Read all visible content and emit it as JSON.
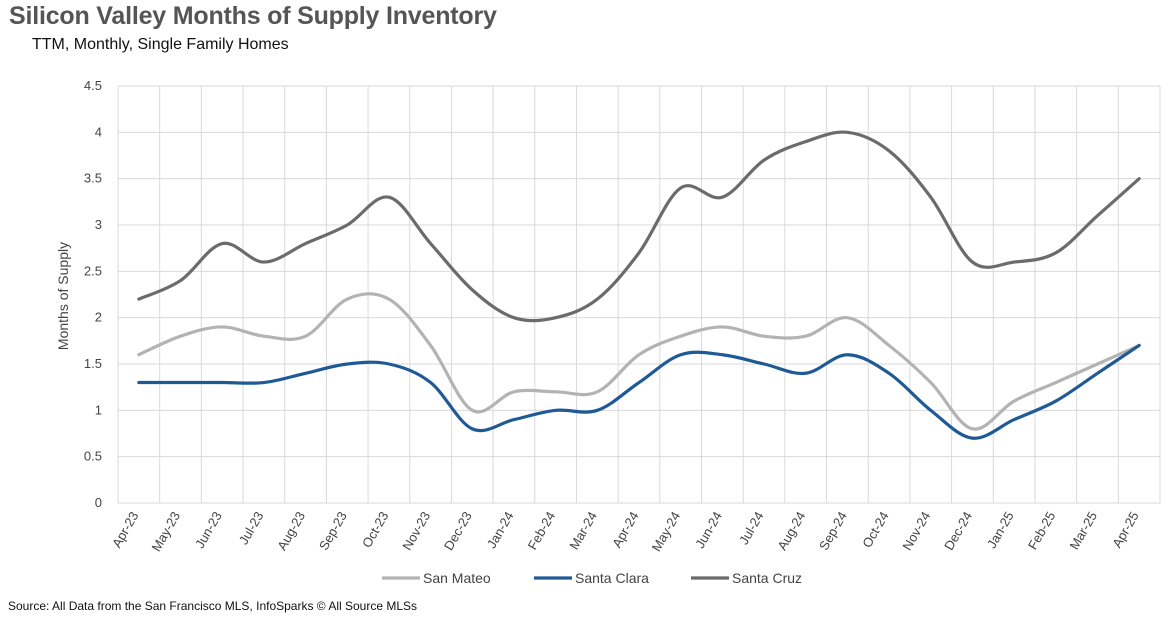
{
  "header": {
    "title": "Silicon Valley Months of Supply Inventory",
    "subtitle": "TTM, Monthly, Single Family Homes"
  },
  "footer": {
    "source": "Source: All Data from the San Francisco MLS, InfoSparks © All Source MLSs"
  },
  "chart_data": {
    "type": "line",
    "title": "Silicon Valley Months of Supply Inventory",
    "subtitle": "TTM, Monthly, Single Family Homes",
    "xlabel": "",
    "ylabel": "Months of Supply",
    "ylim": [
      0,
      4.5
    ],
    "yticks": [
      "0",
      "0.5",
      "1",
      "1.5",
      "2",
      "2.5",
      "3",
      "3.5",
      "4",
      "4.5"
    ],
    "ytick_values": [
      0,
      0.5,
      1,
      1.5,
      2,
      2.5,
      3,
      3.5,
      4,
      4.5
    ],
    "grid": true,
    "legend_position": "bottom",
    "categories": [
      "Apr-23",
      "May-23",
      "Jun-23",
      "Jul-23",
      "Aug-23",
      "Sep-23",
      "Oct-23",
      "Nov-23",
      "Dec-23",
      "Jan-24",
      "Feb-24",
      "Mar-24",
      "Apr-24",
      "May-24",
      "Jun-24",
      "Jul-24",
      "Aug-24",
      "Sep-24",
      "Oct-24",
      "Nov-24",
      "Dec-24",
      "Jan-25",
      "Feb-25",
      "Mar-25",
      "Apr-25"
    ],
    "series": [
      {
        "name": "San Mateo",
        "color": "#b3b3b3",
        "values": [
          1.6,
          1.8,
          1.9,
          1.8,
          1.8,
          2.2,
          2.2,
          1.7,
          1.0,
          1.2,
          1.2,
          1.2,
          1.6,
          1.8,
          1.9,
          1.8,
          1.8,
          2.0,
          1.7,
          1.3,
          0.8,
          1.1,
          1.3,
          1.5,
          1.7
        ]
      },
      {
        "name": "Santa Clara",
        "color": "#1f5a96",
        "values": [
          1.3,
          1.3,
          1.3,
          1.3,
          1.4,
          1.5,
          1.5,
          1.3,
          0.8,
          0.9,
          1.0,
          1.0,
          1.3,
          1.6,
          1.6,
          1.5,
          1.4,
          1.6,
          1.4,
          1.0,
          0.7,
          0.9,
          1.1,
          1.4,
          1.7
        ]
      },
      {
        "name": "Santa Cruz",
        "color": "#6b6b6b",
        "values": [
          2.2,
          2.4,
          2.8,
          2.6,
          2.8,
          3.0,
          3.3,
          2.8,
          2.3,
          2.0,
          2.0,
          2.2,
          2.7,
          3.4,
          3.3,
          3.7,
          3.9,
          4.0,
          3.8,
          3.3,
          2.6,
          2.6,
          2.7,
          3.1,
          3.5
        ]
      }
    ]
  }
}
